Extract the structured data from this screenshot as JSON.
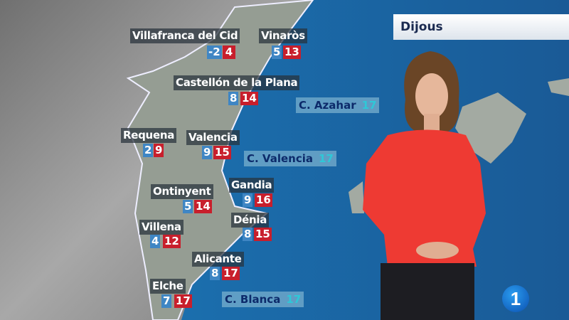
{
  "broadcast": {
    "day": "Dijous",
    "channel_logo": "1"
  },
  "colors": {
    "min_temp": "#3f86c4",
    "max_temp": "#c81f2c",
    "sea": "#1d5f99",
    "land": "#9aa29a"
  },
  "cities": [
    {
      "name": "Villafranca del Cid",
      "min": "-2",
      "max": "4"
    },
    {
      "name": "Vinaròs",
      "min": "5",
      "max": "13"
    },
    {
      "name": "Castellón de la Plana",
      "min": "8",
      "max": "14"
    },
    {
      "name": "Requena",
      "min": "2",
      "max": "9"
    },
    {
      "name": "Valencia",
      "min": "9",
      "max": "15"
    },
    {
      "name": "Gandia",
      "min": "9",
      "max": "16"
    },
    {
      "name": "Ontinyent",
      "min": "5",
      "max": "14"
    },
    {
      "name": "Dénia",
      "min": "8",
      "max": "15"
    },
    {
      "name": "Villena",
      "min": "4",
      "max": "12"
    },
    {
      "name": "Alicante",
      "min": "8",
      "max": "17"
    },
    {
      "name": "Elche",
      "min": "7",
      "max": "17"
    }
  ],
  "sea_temps": [
    {
      "name": "C. Azahar",
      "temp": "17"
    },
    {
      "name": "C. Valencia",
      "temp": "17"
    },
    {
      "name": "C. Blanca",
      "temp": "17"
    }
  ]
}
